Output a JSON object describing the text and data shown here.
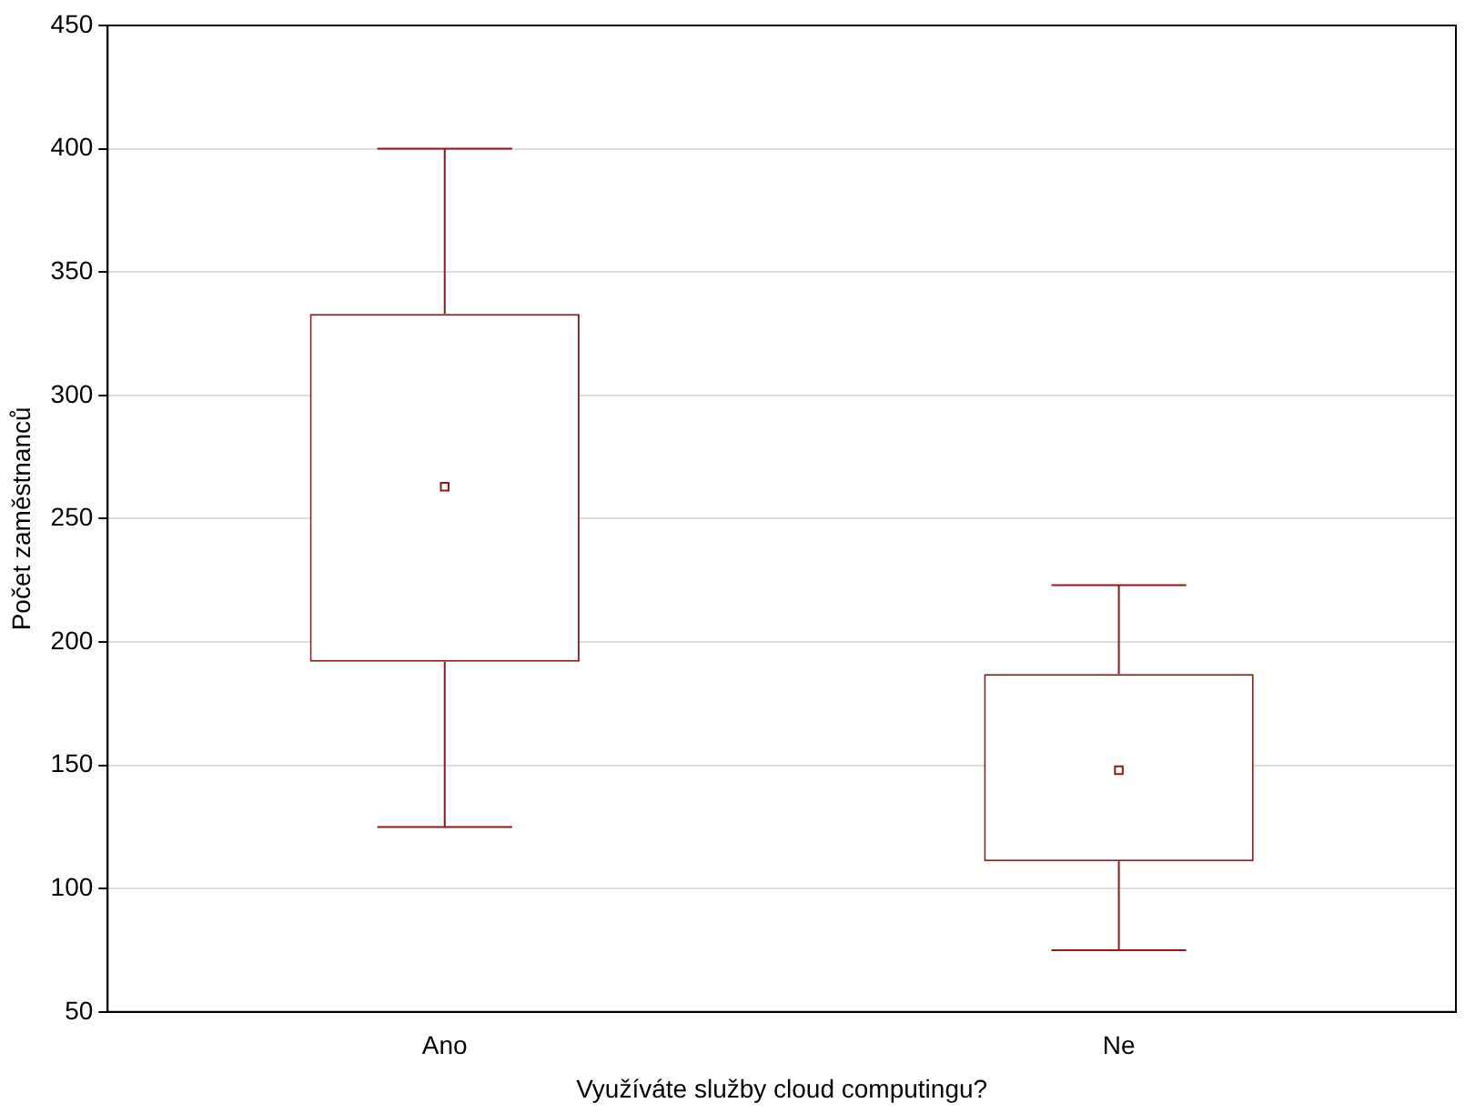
{
  "chart_data": {
    "type": "box",
    "xlabel": "Využíváte služby cloud computingu?",
    "ylabel": "Počet zaměstnanců",
    "categories": [
      "Ano",
      "Ne"
    ],
    "color": "#8b1a1a",
    "boxes": [
      {
        "low": 125,
        "q1": 192,
        "median": 263,
        "q3": 333,
        "high": 400
      },
      {
        "low": 75,
        "q1": 111,
        "median": 148,
        "q3": 187,
        "high": 223
      }
    ],
    "ylim": [
      50,
      450
    ],
    "yticks": [
      50,
      100,
      150,
      200,
      250,
      300,
      350,
      400,
      450
    ],
    "grid": "y",
    "legend": false,
    "marker": "square"
  }
}
